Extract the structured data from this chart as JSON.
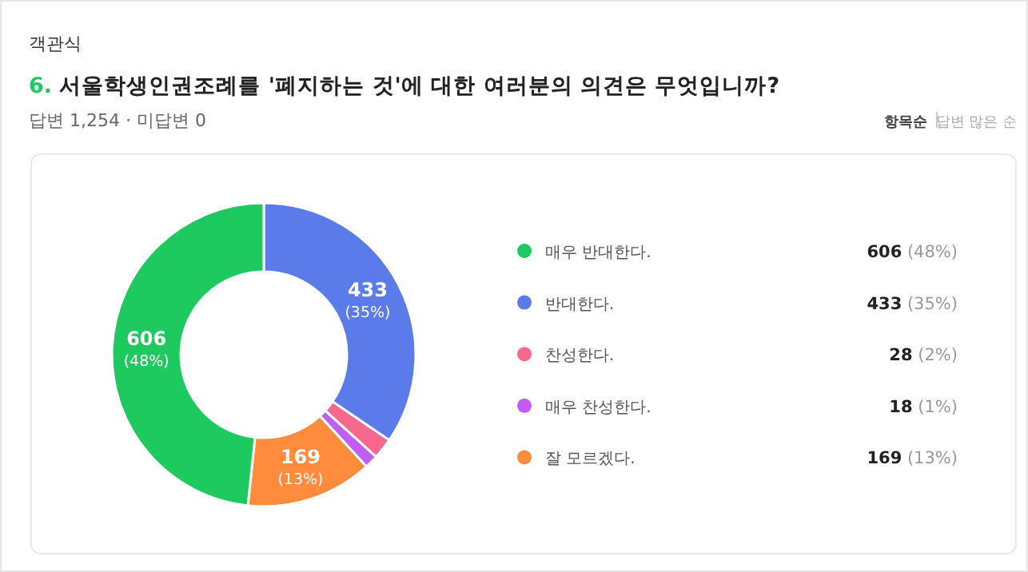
{
  "chart_data": {
    "type": "donut",
    "title": "6. 서울학생인권조례를 '폐지하는 것'에 대한 여러분의 의견은 무엇입니까?",
    "subtitle": "답변 1,254 · 미답변 0",
    "annotations": [
      "객관식",
      "항목순",
      "답변 많은 순"
    ],
    "categories": [
      "매우 반대한다.",
      "반대한다.",
      "찬성한다.",
      "매우 찬성한다.",
      "잘 모르겠다."
    ],
    "values": [
      606,
      433,
      28,
      18,
      169
    ],
    "colors": [
      "#1ec95f",
      "#5a7be9",
      "#f7688f",
      "#c25df2",
      "#ff8b3d"
    ],
    "value_labels": [
      "606 (48%)",
      "433 (35%)",
      "28 (2%)",
      "18 (1%)",
      "169 (13%)"
    ],
    "legend": "right"
  }
}
